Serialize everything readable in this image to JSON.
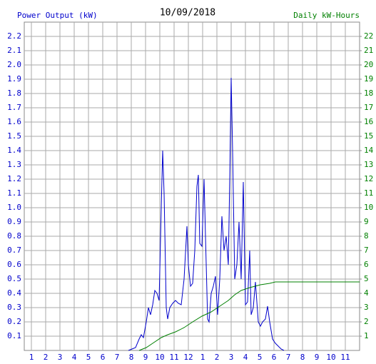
{
  "chart_data": {
    "type": "line",
    "title": "10/09/2018",
    "y_label": "Power Output (kW)",
    "y2_label": "Daily kW-Hours",
    "xlim": [
      0.5,
      24
    ],
    "xticks": [
      1,
      2,
      3,
      4,
      5,
      6,
      7,
      8,
      9,
      10,
      11,
      12,
      {
        "value": 13,
        "label": "1"
      },
      {
        "value": 14,
        "label": "2"
      },
      {
        "value": 15,
        "label": "3"
      },
      {
        "value": 16,
        "label": "4"
      },
      {
        "value": 17,
        "label": "5"
      },
      {
        "value": 18,
        "label": "6"
      },
      {
        "value": 19,
        "label": "7"
      },
      {
        "value": 20,
        "label": "8"
      },
      {
        "value": 21,
        "label": "9"
      },
      {
        "value": 22,
        "label": "10"
      },
      {
        "value": 23,
        "label": "11"
      }
    ],
    "ylim": [
      0,
      2.3
    ],
    "yticks": [
      0.1,
      0.2,
      0.3,
      0.4,
      0.5,
      0.6,
      0.7,
      0.8,
      0.9,
      {
        "value": 1,
        "label": "1.0"
      },
      1.1,
      1.2,
      1.3,
      1.4,
      1.5,
      1.6,
      1.7,
      1.8,
      1.9,
      {
        "value": 2,
        "label": "2.0"
      },
      2.1,
      2.2
    ],
    "y2lim": [
      0,
      23
    ],
    "y2ticks": [
      1,
      2,
      3,
      4,
      5,
      6,
      7,
      8,
      9,
      10,
      11,
      12,
      13,
      14,
      15,
      16,
      17,
      18,
      19,
      20,
      21,
      22
    ],
    "grid": true,
    "series": [
      {
        "name": "Power Output (kW)",
        "color": "#0000cc",
        "x": [
          7.8,
          8.05,
          8.3,
          8.55,
          8.7,
          8.85,
          9.05,
          9.2,
          9.35,
          9.5,
          9.65,
          9.8,
          9.95,
          10.1,
          10.2,
          10.3,
          10.45,
          10.55,
          10.7,
          10.9,
          11.1,
          11.3,
          11.5,
          11.7,
          11.9,
          12.0,
          12.15,
          12.3,
          12.45,
          12.6,
          12.7,
          12.8,
          12.95,
          13.1,
          13.2,
          13.35,
          13.45,
          13.6,
          13.75,
          13.9,
          14.05,
          14.2,
          14.35,
          14.5,
          14.65,
          14.8,
          14.9,
          15.0,
          15.1,
          15.25,
          15.4,
          15.55,
          15.7,
          15.85,
          16.0,
          16.15,
          16.3,
          16.4,
          16.55,
          16.7,
          16.9,
          17.05,
          17.2,
          17.4,
          17.55,
          17.7,
          17.9,
          18.1,
          18.3,
          18.5,
          18.7
        ],
        "values": [
          0,
          0.01,
          0.02,
          0.08,
          0.11,
          0.09,
          0.2,
          0.3,
          0.25,
          0.32,
          0.42,
          0.4,
          0.35,
          1.0,
          1.4,
          1.1,
          0.3,
          0.22,
          0.3,
          0.33,
          0.35,
          0.33,
          0.32,
          0.5,
          0.87,
          0.6,
          0.45,
          0.47,
          0.7,
          1.15,
          1.23,
          0.75,
          0.73,
          1.2,
          0.8,
          0.22,
          0.2,
          0.4,
          0.45,
          0.52,
          0.25,
          0.5,
          0.94,
          0.7,
          0.8,
          0.6,
          1.2,
          1.91,
          1.4,
          0.5,
          0.6,
          0.9,
          0.5,
          1.18,
          0.32,
          0.34,
          0.7,
          0.25,
          0.3,
          0.48,
          0.2,
          0.17,
          0.2,
          0.22,
          0.31,
          0.2,
          0.08,
          0.05,
          0.03,
          0.01,
          0
        ]
      },
      {
        "name": "Daily kW-Hours",
        "color": "#008000",
        "axis": "y2",
        "x": [
          8.55,
          9.05,
          9.5,
          10.1,
          10.55,
          11.1,
          11.7,
          12.3,
          12.95,
          13.6,
          14.2,
          14.8,
          15.25,
          15.7,
          16.3,
          17.05,
          17.7,
          18.1,
          24
        ],
        "values": [
          0,
          0.2,
          0.5,
          0.9,
          1.1,
          1.3,
          1.6,
          2.0,
          2.4,
          2.7,
          3.1,
          3.5,
          3.9,
          4.2,
          4.4,
          4.6,
          4.7,
          4.8,
          4.8
        ]
      }
    ]
  }
}
